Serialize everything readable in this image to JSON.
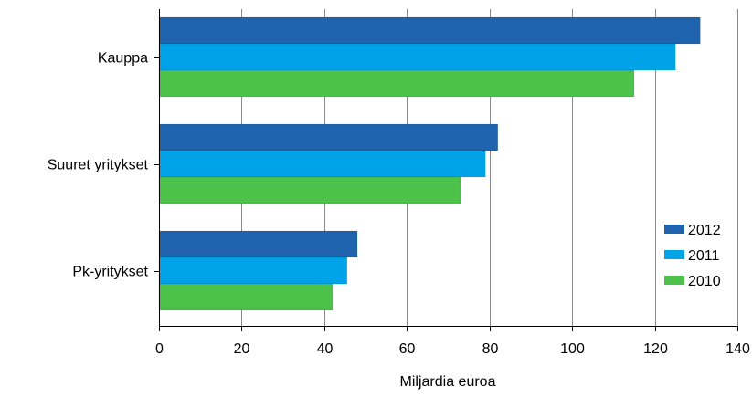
{
  "chart_data": {
    "type": "bar",
    "orientation": "horizontal",
    "categories": [
      "Kauppa",
      "Suuret yritykset",
      "Pk-yritykset"
    ],
    "series": [
      {
        "name": "2012",
        "color": "#1f63ae",
        "values": [
          131,
          82,
          48
        ]
      },
      {
        "name": "2011",
        "color": "#00a3e8",
        "values": [
          125,
          79,
          45.5
        ]
      },
      {
        "name": "2010",
        "color": "#4cc24a",
        "values": [
          115,
          73,
          42
        ]
      }
    ],
    "xlabel": "Miljardia euroa",
    "xlim": [
      0,
      140
    ],
    "xticks": [
      0,
      20,
      40,
      60,
      80,
      100,
      120,
      140
    ],
    "grid": "vertical",
    "legend_position": "bottom-right"
  }
}
